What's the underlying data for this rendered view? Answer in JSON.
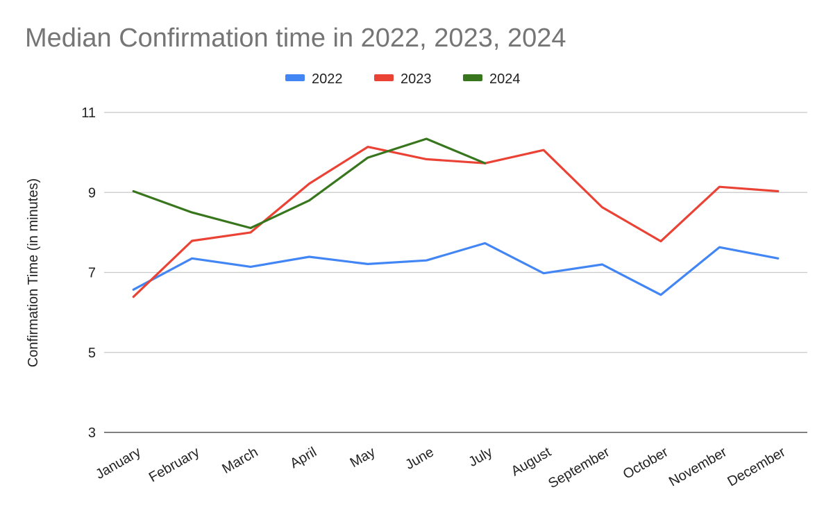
{
  "chart_data": {
    "type": "line",
    "title": "Median Confirmation time in 2022, 2023, 2024",
    "xlabel": "",
    "ylabel": "Confirmation Time (in minutes)",
    "ylim": [
      3,
      11
    ],
    "yticks": [
      3,
      5,
      7,
      9,
      11
    ],
    "grid": true,
    "legend_position": "top-center",
    "categories": [
      "January",
      "February",
      "March",
      "April",
      "May",
      "June",
      "July",
      "August",
      "September",
      "October",
      "November",
      "December"
    ],
    "series": [
      {
        "name": "2022",
        "color": "#4285F4",
        "values": [
          6.57,
          7.35,
          7.14,
          7.39,
          7.21,
          7.3,
          7.73,
          6.98,
          7.2,
          6.44,
          7.63,
          7.35
        ]
      },
      {
        "name": "2023",
        "color": "#EA4335",
        "values": [
          6.39,
          7.79,
          8.0,
          9.22,
          10.14,
          9.83,
          9.73,
          10.06,
          8.63,
          7.78,
          9.14,
          9.03
        ]
      },
      {
        "name": "2024",
        "color": "#38761D",
        "values": [
          9.03,
          8.5,
          8.11,
          8.8,
          9.87,
          10.34,
          9.73,
          null,
          null,
          null,
          null,
          null
        ]
      }
    ]
  }
}
